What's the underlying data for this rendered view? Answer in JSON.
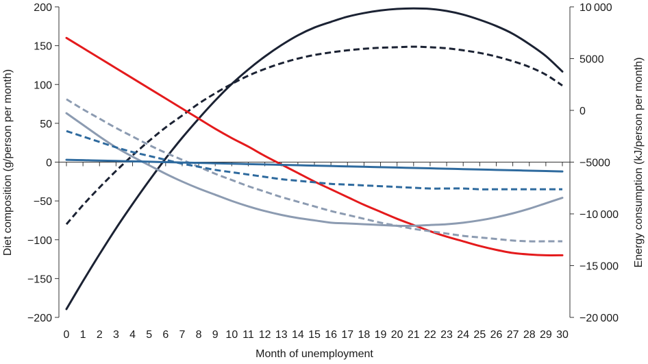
{
  "chart_data": {
    "type": "line",
    "xlabel": "Month of unemployment",
    "ylabel_left": "Diet composition (g/person per month)",
    "ylabel_right": "Energy consumption (kJ/person per month)",
    "x": [
      0,
      1,
      2,
      3,
      4,
      5,
      6,
      7,
      8,
      9,
      10,
      11,
      12,
      13,
      14,
      15,
      16,
      17,
      18,
      19,
      20,
      21,
      22,
      23,
      24,
      25,
      26,
      27,
      28,
      29,
      30
    ],
    "x_ticks": [
      "0",
      "1",
      "2",
      "3",
      "4",
      "5",
      "6",
      "7",
      "8",
      "9",
      "10",
      "11",
      "12",
      "13",
      "14",
      "15",
      "16",
      "17",
      "18",
      "19",
      "20",
      "21",
      "22",
      "23",
      "24",
      "25",
      "26",
      "27",
      "28",
      "29",
      "30"
    ],
    "ylim_left": [
      -200,
      200
    ],
    "yticks_left": [
      {
        "value": 200,
        "label": "200"
      },
      {
        "value": 150,
        "label": "150"
      },
      {
        "value": 100,
        "label": "100"
      },
      {
        "value": 50,
        "label": "50"
      },
      {
        "value": 0,
        "label": "0"
      },
      {
        "value": -50,
        "label": "−50"
      },
      {
        "value": -100,
        "label": "−100"
      },
      {
        "value": -150,
        "label": "−150"
      },
      {
        "value": -200,
        "label": "−200"
      }
    ],
    "ylim_right": [
      -20000,
      10000
    ],
    "yticks_right": [
      {
        "value": 10000,
        "label": "10 000"
      },
      {
        "value": 5000,
        "label": "5000"
      },
      {
        "value": 0,
        "label": "0"
      },
      {
        "value": -5000,
        "label": "−5000"
      },
      {
        "value": -10000,
        "label": "−10 000"
      },
      {
        "value": -15000,
        "label": "−15 000"
      },
      {
        "value": -20000,
        "label": "−20 000"
      }
    ],
    "grid": false,
    "legend": "none",
    "series": [
      {
        "axis": "right",
        "color": "#1b2233",
        "dash": "solid",
        "values": [
          -19200,
          -16500,
          -13900,
          -11400,
          -9050,
          -6800,
          -4650,
          -2650,
          -800,
          950,
          2550,
          3950,
          5200,
          6300,
          7250,
          8000,
          8550,
          9050,
          9400,
          9650,
          9800,
          9850,
          9800,
          9600,
          9250,
          8750,
          8150,
          7400,
          6400,
          5250,
          3750
        ]
      },
      {
        "axis": "right",
        "color": "#1b2233",
        "dash": "dashed",
        "values": [
          -11000,
          -9150,
          -7450,
          -5850,
          -4350,
          -2950,
          -1650,
          -500,
          650,
          1650,
          2550,
          3350,
          4000,
          4550,
          5000,
          5350,
          5600,
          5800,
          5950,
          6050,
          6100,
          6150,
          6100,
          6000,
          5800,
          5550,
          5200,
          4750,
          4200,
          3450,
          2400
        ]
      },
      {
        "axis": "left",
        "color": "#e41a1c",
        "dash": "solid",
        "values": [
          160,
          147,
          134,
          121,
          108,
          95,
          82,
          69,
          56,
          43,
          31,
          20,
          8,
          -3,
          -14,
          -25,
          -35,
          -45,
          -55,
          -64,
          -73,
          -81,
          -89,
          -96,
          -102,
          -108,
          -113,
          -117,
          -119,
          -120,
          -120
        ]
      },
      {
        "axis": "left",
        "color": "#8c9bb1",
        "dash": "solid",
        "values": [
          63,
          48,
          33,
          19,
          7,
          -4,
          -15,
          -25,
          -34,
          -42,
          -50,
          -57,
          -63,
          -68,
          -72,
          -75,
          -78,
          -79,
          -80,
          -81,
          -82,
          -82,
          -81,
          -80,
          -78,
          -75,
          -71,
          -66,
          -60,
          -53,
          -46
        ]
      },
      {
        "axis": "left",
        "color": "#8c9bb1",
        "dash": "dashed",
        "values": [
          81,
          68,
          56,
          44,
          33,
          22,
          12,
          3,
          -6,
          -15,
          -23,
          -31,
          -38,
          -45,
          -51,
          -57,
          -63,
          -68,
          -73,
          -78,
          -82,
          -86,
          -89,
          -92,
          -95,
          -97,
          -99,
          -101,
          -102,
          -102,
          -102
        ]
      },
      {
        "axis": "left",
        "color": "#2e6a9e",
        "dash": "dashed",
        "values": [
          40,
          33,
          26,
          19,
          13,
          8,
          3,
          -2,
          -6,
          -10,
          -13,
          -16,
          -19,
          -22,
          -24,
          -26,
          -28,
          -29,
          -30,
          -31,
          -32,
          -33,
          -34,
          -34,
          -34,
          -35,
          -35,
          -35,
          -35,
          -35,
          -35
        ]
      },
      {
        "axis": "left",
        "color": "#2e6a9e",
        "dash": "solid",
        "values": [
          3,
          2.5,
          2,
          1.5,
          1,
          0.5,
          0,
          -0.5,
          -1,
          -1.5,
          -2,
          -2.5,
          -3,
          -3.5,
          -4,
          -4.5,
          -5,
          -5.5,
          -6,
          -6.5,
          -7,
          -7.5,
          -8,
          -8.5,
          -9,
          -9.5,
          -10,
          -10.5,
          -11,
          -11.5,
          -12
        ]
      }
    ]
  }
}
